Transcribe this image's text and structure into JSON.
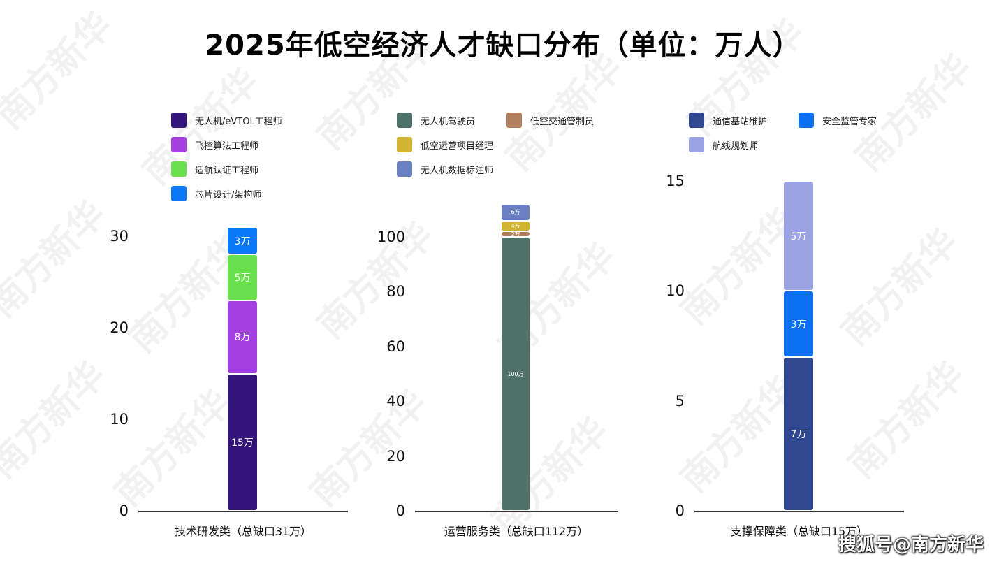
{
  "title": "2025年低空经济人才缺口分布（单位：万人）",
  "watermark": "南方新华",
  "source": "搜狐号@南方新华",
  "chart_data": [
    {
      "type": "bar",
      "stacked": true,
      "category": "技术研发类（总缺口31万）",
      "ylim": [
        0,
        31
      ],
      "yticks": [
        "0",
        "10",
        "20",
        "30"
      ],
      "ytick_values": [
        0,
        10,
        20,
        30
      ],
      "series": [
        {
          "name": "无人机/eVTOL工程师",
          "value": 15,
          "label": "15万",
          "color": "#32147a"
        },
        {
          "name": "飞控算法工程师",
          "value": 8,
          "label": "8万",
          "color": "#a43fe0"
        },
        {
          "name": "适航认证工程师",
          "value": 5,
          "label": "5万",
          "color": "#6be04e"
        },
        {
          "name": "芯片设计/架构师",
          "value": 3,
          "label": "3万",
          "color": "#0b78f7"
        }
      ]
    },
    {
      "type": "bar",
      "stacked": true,
      "category": "运营服务类（总缺口112万）",
      "ylim": [
        0,
        112
      ],
      "yticks": [
        "0",
        "20",
        "40",
        "60",
        "80",
        "100"
      ],
      "ytick_values": [
        0,
        20,
        40,
        60,
        80,
        100
      ],
      "series": [
        {
          "name": "无人机驾驶员",
          "value": 100,
          "label": "100万",
          "color": "#4e7168"
        },
        {
          "name": "低空交通管制员",
          "value": 2,
          "label": "2万",
          "color": "#b07e5c"
        },
        {
          "name": "低空运营项目经理",
          "value": 4,
          "label": "4万",
          "color": "#d0b432"
        },
        {
          "name": "无人机数据标注师",
          "value": 6,
          "label": "6万",
          "color": "#6b80c0"
        }
      ]
    },
    {
      "type": "bar",
      "stacked": true,
      "category": "支撑保障类（总缺口15万）",
      "ylim": [
        0,
        15
      ],
      "yticks": [
        "0",
        "5",
        "10",
        "15"
      ],
      "ytick_values": [
        0,
        5,
        10,
        15
      ],
      "series": [
        {
          "name": "通信基站维护",
          "value": 7,
          "label": "7万",
          "color": "#2f4690"
        },
        {
          "name": "安全监管专家",
          "value": 3,
          "label": "3万",
          "color": "#0b71f2"
        },
        {
          "name": "航线规划师",
          "value": 5,
          "label": "5万",
          "color": "#9ba3e4"
        }
      ]
    }
  ]
}
